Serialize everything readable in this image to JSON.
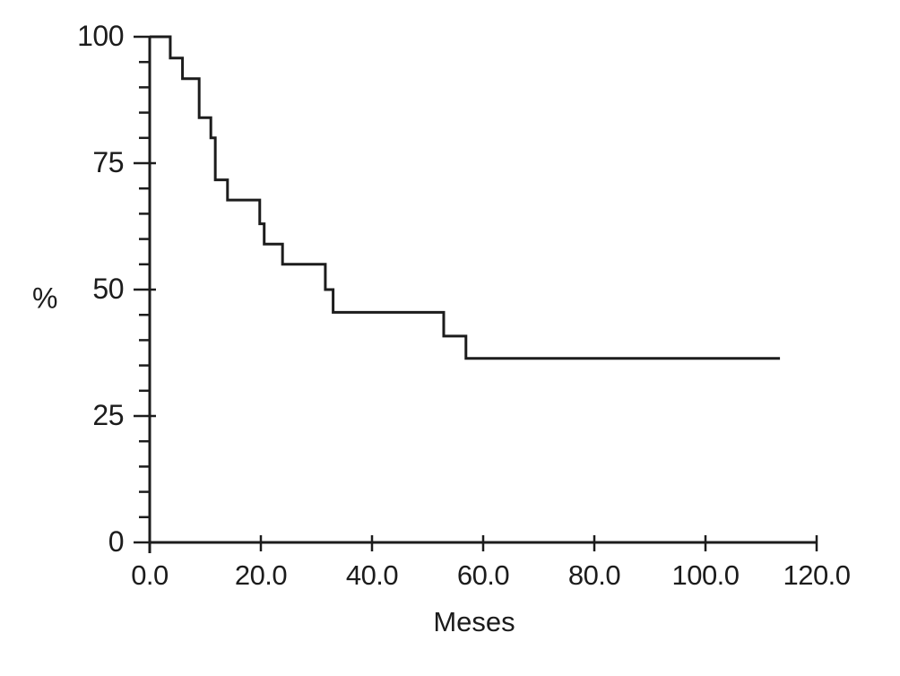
{
  "figure": {
    "background": "#ffffff",
    "ink_color": "#1c1c1c"
  },
  "chart_data": {
    "type": "line",
    "subtype": "kaplan-meier-step-curve",
    "title": "",
    "xlabel": "Meses",
    "ylabel": "%",
    "xlim": [
      0,
      120
    ],
    "ylim": [
      0,
      100
    ],
    "grid": false,
    "legend": null,
    "x_ticks": [
      {
        "value": 0,
        "label": "0.0"
      },
      {
        "value": 20,
        "label": "20.0"
      },
      {
        "value": 40,
        "label": "40.0"
      },
      {
        "value": 60,
        "label": "60.0"
      },
      {
        "value": 80,
        "label": "80.0"
      },
      {
        "value": 100,
        "label": "100.0"
      },
      {
        "value": 120,
        "label": "120.0"
      }
    ],
    "y_ticks": [
      {
        "value": 0,
        "label": "0"
      },
      {
        "value": 25,
        "label": "25"
      },
      {
        "value": 50,
        "label": "50"
      },
      {
        "value": 75,
        "label": "75"
      },
      {
        "value": 100,
        "label": "100"
      }
    ],
    "y_minor_tick_step": 5,
    "line_color": "#1c1c1c",
    "steps": [
      {
        "month": 0.0,
        "percent": 100.0
      },
      {
        "month": 3.7,
        "percent": 95.8
      },
      {
        "month": 5.9,
        "percent": 91.7
      },
      {
        "month": 8.9,
        "percent": 84.0
      },
      {
        "month": 11.0,
        "percent": 80.0
      },
      {
        "month": 11.8,
        "percent": 71.7
      },
      {
        "month": 14.0,
        "percent": 67.7
      },
      {
        "month": 19.8,
        "percent": 63.0
      },
      {
        "month": 20.6,
        "percent": 59.0
      },
      {
        "month": 23.9,
        "percent": 55.0
      },
      {
        "month": 31.6,
        "percent": 50.0
      },
      {
        "month": 33.0,
        "percent": 45.5
      },
      {
        "month": 52.9,
        "percent": 40.8
      },
      {
        "month": 56.9,
        "percent": 36.4
      }
    ],
    "end_month": 113.4,
    "final_percent": 36.4
  }
}
